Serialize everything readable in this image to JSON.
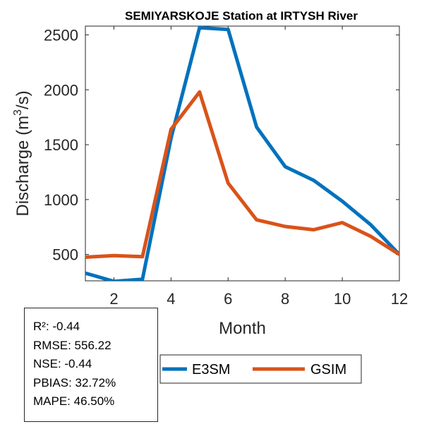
{
  "chart_data": {
    "type": "line",
    "title": "SEMIYARSKOJE  Station at  IRTYSH  River",
    "xlabel": "Month",
    "ylabel": "Discharge (m^3/s)",
    "ylabel_prefix": "Discharge (m",
    "ylabel_superscript": "3",
    "ylabel_suffix": "/s)",
    "xlim": [
      1,
      12
    ],
    "ylim": [
      260,
      2580
    ],
    "xticks": [
      2,
      4,
      6,
      8,
      10,
      12
    ],
    "yticks": [
      500,
      1000,
      1500,
      2000,
      2500
    ],
    "x": [
      1,
      2,
      3,
      4,
      5,
      6,
      7,
      8,
      9,
      10,
      11,
      12
    ],
    "series": [
      {
        "name": "E3SM",
        "color": "#0072BD",
        "values": [
          330,
          255,
          275,
          1560,
          2565,
          2550,
          1660,
          1300,
          1175,
          985,
          770,
          500
        ]
      },
      {
        "name": "GSIM",
        "color": "#D95319",
        "values": [
          475,
          490,
          480,
          1640,
          1980,
          1150,
          815,
          755,
          725,
          790,
          665,
          500
        ]
      }
    ],
    "grid": false,
    "legend_position": "bottom",
    "legend_labels": [
      "E3SM",
      "GSIM"
    ]
  },
  "stats": {
    "lines": [
      "R²: -0.44",
      "RMSE: 556.22",
      "NSE: -0.44",
      "PBIAS: 32.72%",
      "MAPE: 46.50%"
    ]
  }
}
